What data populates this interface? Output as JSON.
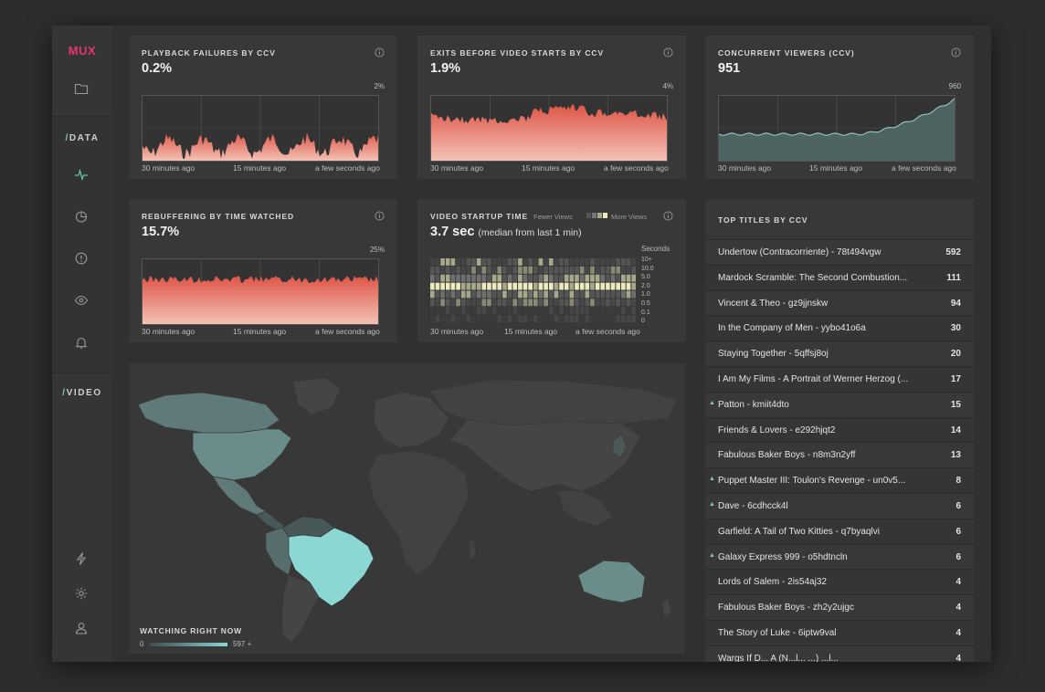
{
  "colors": {
    "brand": "#e8336d",
    "accent": "#7dc9c4",
    "failure_fill_top": "#e0584c",
    "failure_fill_bottom": "#f0b8ac",
    "ccv_fill": "#4d6462",
    "map_highlight": "#8ad7d4"
  },
  "sidebar": {
    "logo": "MUX",
    "sections": [
      {
        "slash": "/",
        "label": "DATA"
      },
      {
        "slash": "/",
        "label": "VIDEO"
      }
    ],
    "icons": [
      "folder-icon",
      "pulse-icon",
      "pie-chart-icon",
      "alert-icon",
      "eye-icon",
      "bell-icon",
      "bolt-icon",
      "gear-icon",
      "user-icon"
    ]
  },
  "panels": {
    "playback_failures": {
      "title": "PLAYBACK FAILURES BY CCV",
      "value": "0.2%",
      "ymax": "2%",
      "x_labels": [
        "30 minutes ago",
        "15 minutes ago",
        "a few seconds ago"
      ]
    },
    "exits_before_start": {
      "title": "EXITS BEFORE VIDEO STARTS BY CCV",
      "value": "1.9%",
      "ymax": "4%",
      "x_labels": [
        "30 minutes ago",
        "15 minutes ago",
        "a few seconds ago"
      ]
    },
    "concurrent_viewers": {
      "title": "CONCURRENT VIEWERS (CCV)",
      "value": "951",
      "ymax": "960",
      "x_labels": [
        "30 minutes ago",
        "15 minutes ago",
        "a few seconds ago"
      ]
    },
    "rebuffering": {
      "title": "REBUFFERING BY TIME WATCHED",
      "value": "15.7%",
      "ymax": "25%",
      "x_labels": [
        "30 minutes ago",
        "15 minutes ago",
        "a few seconds ago"
      ]
    },
    "startup_time": {
      "title": "VIDEO STARTUP TIME",
      "value": "3.7 sec",
      "value_sub": "(median from last 1 min)",
      "legend_fewer": "Fewer Views",
      "legend_more": "More Views",
      "y_title": "Seconds",
      "y_labels": [
        "10+",
        "10.0",
        "5.0",
        "2.0",
        "1.0",
        "0.5",
        "0.1",
        "0"
      ],
      "x_labels": [
        "30 minutes ago",
        "15 minutes ago",
        "a few seconds ago"
      ]
    }
  },
  "map": {
    "legend_title": "WATCHING RIGHT NOW",
    "legend_min": "0",
    "legend_max": "597 +"
  },
  "top_titles": {
    "title": "TOP TITLES BY CCV",
    "rows": [
      {
        "name": "Undertow (Contracorriente) - 78t494vgw",
        "count": "592",
        "up": false
      },
      {
        "name": "Mardock Scramble: The Second Combustion...",
        "count": "111",
        "up": false
      },
      {
        "name": "Vincent & Theo - gz9jjnskw",
        "count": "94",
        "up": false
      },
      {
        "name": "In the Company of Men - yybo41o6a",
        "count": "30",
        "up": false
      },
      {
        "name": "Staying Together - 5qffsj8oj",
        "count": "20",
        "up": false
      },
      {
        "name": "I Am My Films - A Portrait of Werner Herzog (...",
        "count": "17",
        "up": false
      },
      {
        "name": "Patton - kmiit4dto",
        "count": "15",
        "up": true
      },
      {
        "name": "Friends & Lovers - e292hjqt2",
        "count": "14",
        "up": false
      },
      {
        "name": "Fabulous Baker Boys - n8m3n2yff",
        "count": "13",
        "up": false
      },
      {
        "name": "Puppet Master III: Toulon's Revenge - un0v5...",
        "count": "8",
        "up": true
      },
      {
        "name": "Dave - 6cdhcck4l",
        "count": "6",
        "up": true
      },
      {
        "name": "Garfield: A Tail of Two Kitties - q7byaqlvi",
        "count": "6",
        "up": false
      },
      {
        "name": "Galaxy Express 999 - o5hdtncln",
        "count": "6",
        "up": true
      },
      {
        "name": "Lords of Salem - 2is54aj32",
        "count": "4",
        "up": false
      },
      {
        "name": "Fabulous Baker Boys - zh2y2ujgc",
        "count": "4",
        "up": false
      },
      {
        "name": "The Story of Luke - 6iptw9val",
        "count": "4",
        "up": false
      },
      {
        "name": "Wargs If D... A (N...l... ...) ...l...",
        "count": "4",
        "up": false
      }
    ]
  }
}
